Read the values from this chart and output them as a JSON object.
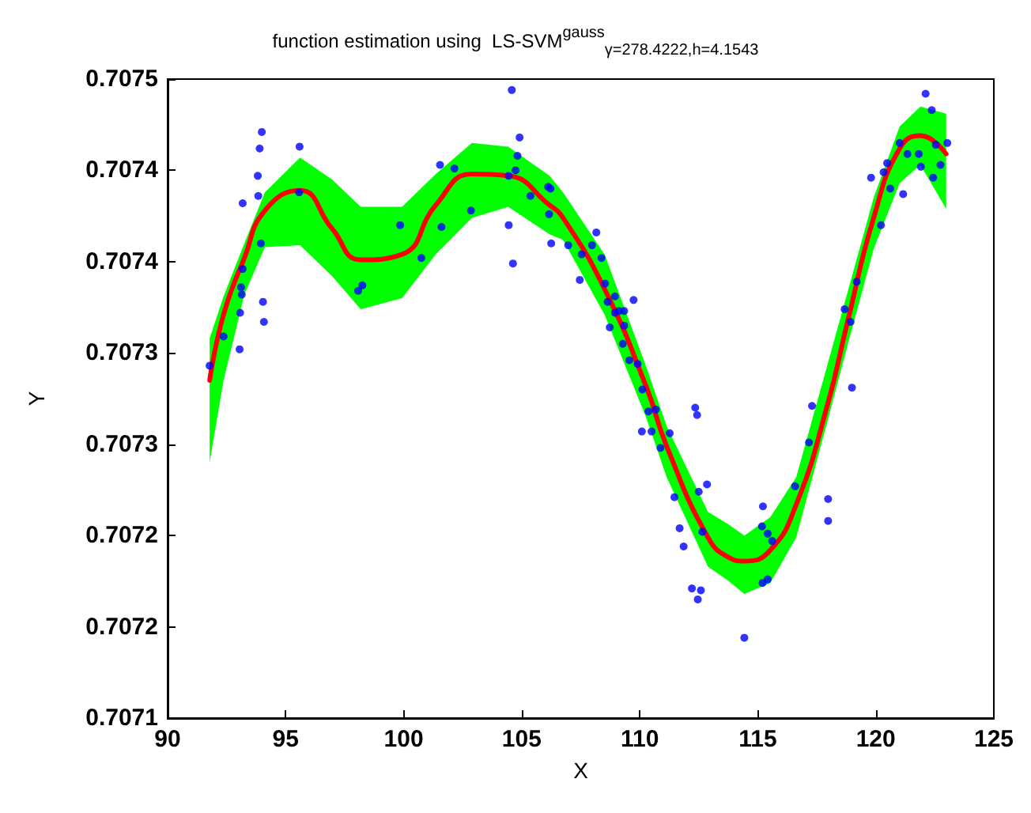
{
  "chart_data": {
    "type": "scatter",
    "title": "function estimation using  LS-SVM$^{gauss}$$_{γ=278.4222,h=4.1543}$",
    "xlabel": "X",
    "ylabel": "Y",
    "xlim": [
      90,
      125
    ],
    "xticks": [
      90,
      95,
      100,
      105,
      110,
      115,
      120,
      125
    ],
    "ylim": [
      0.7071,
      0.70745
    ],
    "yticks": [
      {
        "value": 0.7071,
        "label": "0.7071"
      },
      {
        "value": 0.70715,
        "label": "0.7072"
      },
      {
        "value": 0.7072,
        "label": "0.7072"
      },
      {
        "value": 0.70725,
        "label": "0.7073"
      },
      {
        "value": 0.7073,
        "label": "0.7073"
      },
      {
        "value": 0.70735,
        "label": "0.7074"
      },
      {
        "value": 0.7074,
        "label": "0.7074"
      },
      {
        "value": 0.70745,
        "label": "0.7075"
      }
    ],
    "grid": false,
    "series": [
      {
        "type": "line",
        "color": "#ff0000",
        "line_style": "solid",
        "marker": "none",
        "x": [
          91.78,
          92.37,
          93.25,
          94.12,
          95.61,
          96.97,
          98.18,
          99.93,
          101.36,
          102.89,
          104.43,
          106.18,
          106.75,
          108.51,
          110.26,
          111.14,
          112.89,
          113.77,
          114.43,
          115.53,
          116.63,
          117.94,
          118.82,
          119.91,
          121.01,
          121.89,
          122.98
        ],
        "values": [
          0.707285,
          0.707321,
          0.707352,
          0.707378,
          0.707389,
          0.707368,
          0.707351,
          0.707354,
          0.707381,
          0.707398,
          0.707397,
          0.707381,
          0.707374,
          0.707335,
          0.707282,
          0.707249,
          0.707199,
          0.707188,
          0.707186,
          0.707192,
          0.707217,
          0.707271,
          0.707318,
          0.707374,
          0.707412,
          0.707419,
          0.707409
        ],
        "upper": [
          0.707308,
          0.707331,
          0.70736,
          0.707388,
          0.707407,
          0.707395,
          0.70738,
          0.70738,
          0.707398,
          0.707415,
          0.707413,
          0.707397,
          0.707388,
          0.707354,
          0.707293,
          0.70726,
          0.707213,
          0.707206,
          0.7072,
          0.70721,
          0.707232,
          0.707293,
          0.707334,
          0.707385,
          0.707424,
          0.707435,
          0.707431
        ],
        "lower": [
          0.70724,
          0.707285,
          0.707332,
          0.707358,
          0.707359,
          0.707342,
          0.707324,
          0.70733,
          0.707354,
          0.707374,
          0.70738,
          0.707365,
          0.707362,
          0.707321,
          0.707265,
          0.707232,
          0.707183,
          0.707175,
          0.707168,
          0.707174,
          0.707199,
          0.707262,
          0.707305,
          0.707357,
          0.707393,
          0.707403,
          0.707379
        ]
      },
      {
        "color": "#0000ff",
        "marker": "circle",
        "x": [
          91.78,
          92.37,
          93.05,
          93.07,
          93.11,
          93.14,
          93.18,
          93.18,
          93.82,
          93.84,
          93.9,
          93.99,
          93.95,
          94.04,
          94.08,
          95.59,
          95.57,
          98.07,
          98.25,
          99.85,
          100.75,
          101.54,
          101.6,
          102.15,
          102.85,
          104.45,
          104.45,
          104.58,
          104.63,
          104.74,
          104.82,
          104.91,
          105.37,
          106.12,
          106.22,
          106.16,
          106.25,
          106.97,
          107.46,
          107.54,
          107.98,
          108.16,
          108.38,
          108.53,
          108.64,
          108.95,
          108.95,
          109.12,
          109.34,
          108.73,
          109.34,
          109.74,
          109.28,
          109.56,
          109.91,
          110.11,
          110.37,
          110.68,
          110.09,
          110.5,
          110.88,
          111.27,
          111.47,
          111.69,
          111.86,
          112.21,
          112.46,
          112.59,
          112.35,
          112.43,
          112.5,
          112.85,
          112.65,
          114.43,
          115.2,
          115.42,
          115.22,
          115.18,
          115.42,
          115.61,
          116.58,
          117.17,
          117.3,
          117.98,
          117.98,
          118.68,
          118.93,
          118.99,
          119.19,
          119.8,
          120.22,
          120.33,
          120.48,
          120.61,
          121.01,
          121.16,
          121.34,
          121.82,
          121.91,
          122.11,
          122.37,
          122.43,
          122.54,
          122.74,
          123.03
        ],
        "values": [
          0.707293,
          0.707309,
          0.707302,
          0.707322,
          0.707336,
          0.707332,
          0.707346,
          0.707382,
          0.707397,
          0.707386,
          0.707412,
          0.707421,
          0.70736,
          0.707328,
          0.707317,
          0.707413,
          0.707388,
          0.707334,
          0.707337,
          0.70737,
          0.707352,
          0.707403,
          0.707369,
          0.707401,
          0.707378,
          0.707397,
          0.70737,
          0.707444,
          0.707349,
          0.7074,
          0.707408,
          0.707418,
          0.707386,
          0.707391,
          0.70739,
          0.707376,
          0.70736,
          0.707359,
          0.70734,
          0.707354,
          0.707359,
          0.707366,
          0.707352,
          0.707338,
          0.707328,
          0.707331,
          0.707322,
          0.707323,
          0.707323,
          0.707314,
          0.707315,
          0.707329,
          0.707305,
          0.707296,
          0.707294,
          0.70728,
          0.707268,
          0.707269,
          0.707257,
          0.707257,
          0.707248,
          0.707256,
          0.707221,
          0.707204,
          0.707194,
          0.707171,
          0.707165,
          0.70717,
          0.70727,
          0.707266,
          0.707224,
          0.707228,
          0.707202,
          0.707144,
          0.707174,
          0.707176,
          0.707216,
          0.707205,
          0.707201,
          0.707197,
          0.707227,
          0.707251,
          0.707271,
          0.70722,
          0.707208,
          0.707324,
          0.707317,
          0.707281,
          0.707339,
          0.707396,
          0.70737,
          0.707399,
          0.707404,
          0.70739,
          0.707415,
          0.707387,
          0.707409,
          0.707409,
          0.707402,
          0.707442,
          0.707433,
          0.707396,
          0.707414,
          0.707403,
          0.707415
        ]
      }
    ]
  }
}
